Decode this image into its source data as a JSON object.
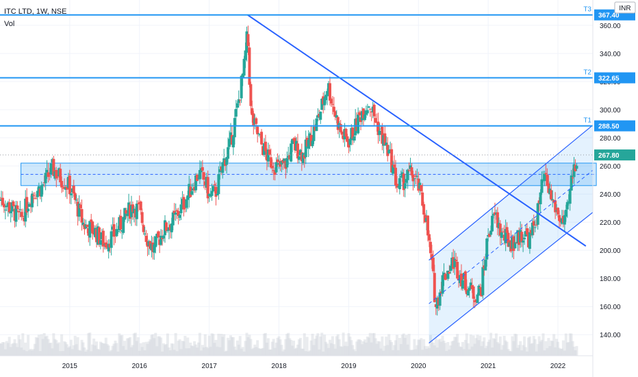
{
  "header": {
    "symbol": "ITC LTD, 1W, NSE",
    "volume_label": "Vol",
    "currency_badge": "INR"
  },
  "colors": {
    "up": "#26a69a",
    "down": "#ef5350",
    "line": "#2962ff",
    "level": "#2196f3",
    "zone_fill": "rgba(33,150,243,0.22)",
    "channel_fill": "rgba(33,150,243,0.12)",
    "volume": "#d1d4dc",
    "grid": "#f0f3fa",
    "axis_text": "#131722",
    "tag_bg": "#2196f3",
    "tag_text": "#ffffff"
  },
  "chart_data": {
    "type": "candlestick",
    "title": "ITC LTD, 1W, NSE",
    "x_range": [
      2014.0,
      2022.5
    ],
    "y_range": [
      125,
      378
    ],
    "x_ticks": [
      "2015",
      "2016",
      "2017",
      "2018",
      "2019",
      "2020",
      "2021",
      "2022"
    ],
    "x_tick_values": [
      2015,
      2016,
      2017,
      2018,
      2019,
      2020,
      2021,
      2022
    ],
    "y_ticks": [
      140,
      160,
      180,
      200,
      220,
      240,
      260,
      280,
      300,
      320,
      340,
      360
    ],
    "grid": true,
    "price_path": [
      [
        2014.0,
        237
      ],
      [
        2014.15,
        230
      ],
      [
        2014.3,
        222
      ],
      [
        2014.45,
        240
      ],
      [
        2014.6,
        245
      ],
      [
        2014.75,
        258
      ],
      [
        2014.9,
        250
      ],
      [
        2015.0,
        245
      ],
      [
        2015.1,
        232
      ],
      [
        2015.2,
        218
      ],
      [
        2015.35,
        214
      ],
      [
        2015.5,
        205
      ],
      [
        2015.65,
        212
      ],
      [
        2015.8,
        224
      ],
      [
        2015.9,
        232
      ],
      [
        2016.0,
        228
      ],
      [
        2016.1,
        210
      ],
      [
        2016.2,
        200
      ],
      [
        2016.35,
        215
      ],
      [
        2016.5,
        222
      ],
      [
        2016.6,
        230
      ],
      [
        2016.75,
        245
      ],
      [
        2016.85,
        255
      ],
      [
        2016.95,
        248
      ],
      [
        2017.0,
        238
      ],
      [
        2017.1,
        242
      ],
      [
        2017.2,
        262
      ],
      [
        2017.3,
        275
      ],
      [
        2017.4,
        300
      ],
      [
        2017.5,
        330
      ],
      [
        2017.55,
        355
      ],
      [
        2017.6,
        295
      ],
      [
        2017.75,
        275
      ],
      [
        2017.85,
        265
      ],
      [
        2018.0,
        258
      ],
      [
        2018.1,
        262
      ],
      [
        2018.2,
        275
      ],
      [
        2018.35,
        268
      ],
      [
        2018.5,
        285
      ],
      [
        2018.6,
        300
      ],
      [
        2018.7,
        318
      ],
      [
        2018.8,
        298
      ],
      [
        2018.9,
        282
      ],
      [
        2019.0,
        278
      ],
      [
        2019.1,
        288
      ],
      [
        2019.2,
        300
      ],
      [
        2019.3,
        305
      ],
      [
        2019.4,
        290
      ],
      [
        2019.5,
        278
      ],
      [
        2019.6,
        265
      ],
      [
        2019.7,
        245
      ],
      [
        2019.8,
        250
      ],
      [
        2019.9,
        255
      ],
      [
        2020.0,
        245
      ],
      [
        2020.1,
        225
      ],
      [
        2020.2,
        185
      ],
      [
        2020.25,
        160
      ],
      [
        2020.35,
        180
      ],
      [
        2020.5,
        192
      ],
      [
        2020.65,
        178
      ],
      [
        2020.8,
        168
      ],
      [
        2020.9,
        172
      ],
      [
        2021.0,
        212
      ],
      [
        2021.1,
        225
      ],
      [
        2021.2,
        210
      ],
      [
        2021.35,
        205
      ],
      [
        2021.5,
        212
      ],
      [
        2021.6,
        208
      ],
      [
        2021.7,
        225
      ],
      [
        2021.8,
        252
      ],
      [
        2021.9,
        238
      ],
      [
        2022.0,
        225
      ],
      [
        2022.1,
        218
      ],
      [
        2022.15,
        232
      ],
      [
        2022.2,
        252
      ],
      [
        2022.28,
        268
      ]
    ],
    "price_levels": [
      {
        "label": "T3",
        "value": 367.4,
        "tag": "367.40"
      },
      {
        "label": "T2",
        "value": 322.65,
        "tag": "322.65"
      },
      {
        "label": "T1",
        "value": 288.5,
        "tag": "288.50"
      }
    ],
    "last_price": {
      "value": 267.8,
      "tag": "267.80"
    },
    "trendline": {
      "from": [
        2017.55,
        367.4
      ],
      "to": [
        2022.4,
        203
      ]
    },
    "zone": {
      "x_from": 2014.3,
      "x_to": 2022.55,
      "y_high": 262,
      "y_low": 246,
      "y_mid": 254
    },
    "channel": {
      "x_from": 2020.15,
      "x_to": 2022.5,
      "lower": [
        134,
        227
      ],
      "mid": [
        162,
        257
      ],
      "upper": [
        193,
        289
      ]
    }
  }
}
